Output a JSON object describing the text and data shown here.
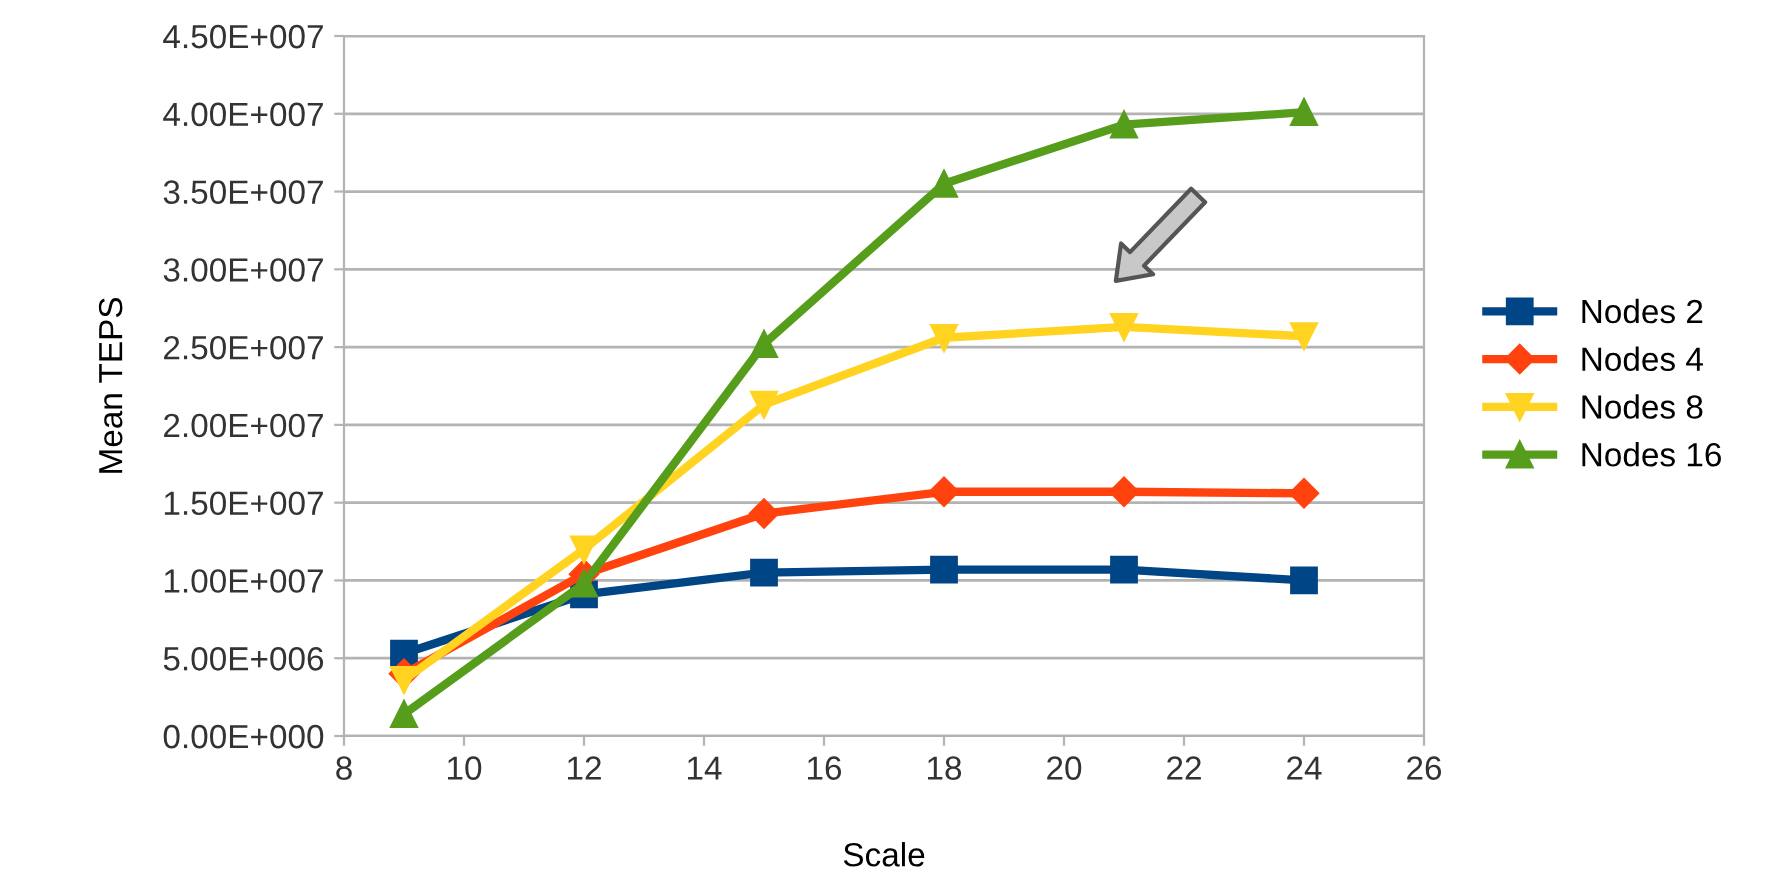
{
  "chart_data": {
    "type": "line",
    "xlabel": "Scale",
    "ylabel": "Mean TEPS",
    "x": [
      9,
      12,
      15,
      18,
      21,
      24
    ],
    "series": [
      {
        "name": "Nodes 2",
        "color": "#004586",
        "marker": "square",
        "values": [
          5300000,
          9100000,
          10500000,
          10700000,
          10700000,
          10000000
        ]
      },
      {
        "name": "Nodes 4",
        "color": "#ff420e",
        "marker": "diamond",
        "values": [
          4000000,
          10400000,
          14300000,
          15700000,
          15700000,
          15600000
        ]
      },
      {
        "name": "Nodes 8",
        "color": "#ffd320",
        "marker": "triangle_down",
        "values": [
          3600000,
          12000000,
          21300000,
          25600000,
          26300000,
          25700000
        ]
      },
      {
        "name": "Nodes 16",
        "color": "#579d1c",
        "marker": "triangle",
        "values": [
          1400000,
          9800000,
          25200000,
          35500000,
          39300000,
          40100000
        ]
      }
    ],
    "xlim": [
      8,
      26
    ],
    "xticks": [
      8,
      10,
      12,
      14,
      16,
      18,
      20,
      22,
      24,
      26
    ],
    "ylim": [
      0,
      45000000
    ],
    "yticks": [
      {
        "value": 0,
        "label": "0.00E+000"
      },
      {
        "value": 5000000,
        "label": "5.00E+006"
      },
      {
        "value": 10000000,
        "label": "1.00E+007"
      },
      {
        "value": 15000000,
        "label": "1.50E+007"
      },
      {
        "value": 20000000,
        "label": "2.00E+007"
      },
      {
        "value": 25000000,
        "label": "2.50E+007"
      },
      {
        "value": 30000000,
        "label": "3.00E+007"
      },
      {
        "value": 35000000,
        "label": "3.50E+007"
      },
      {
        "value": 40000000,
        "label": "4.00E+007"
      },
      {
        "value": 45000000,
        "label": "4.50E+007"
      }
    ],
    "grid": "y",
    "legend": "right",
    "line_style": "solid"
  }
}
